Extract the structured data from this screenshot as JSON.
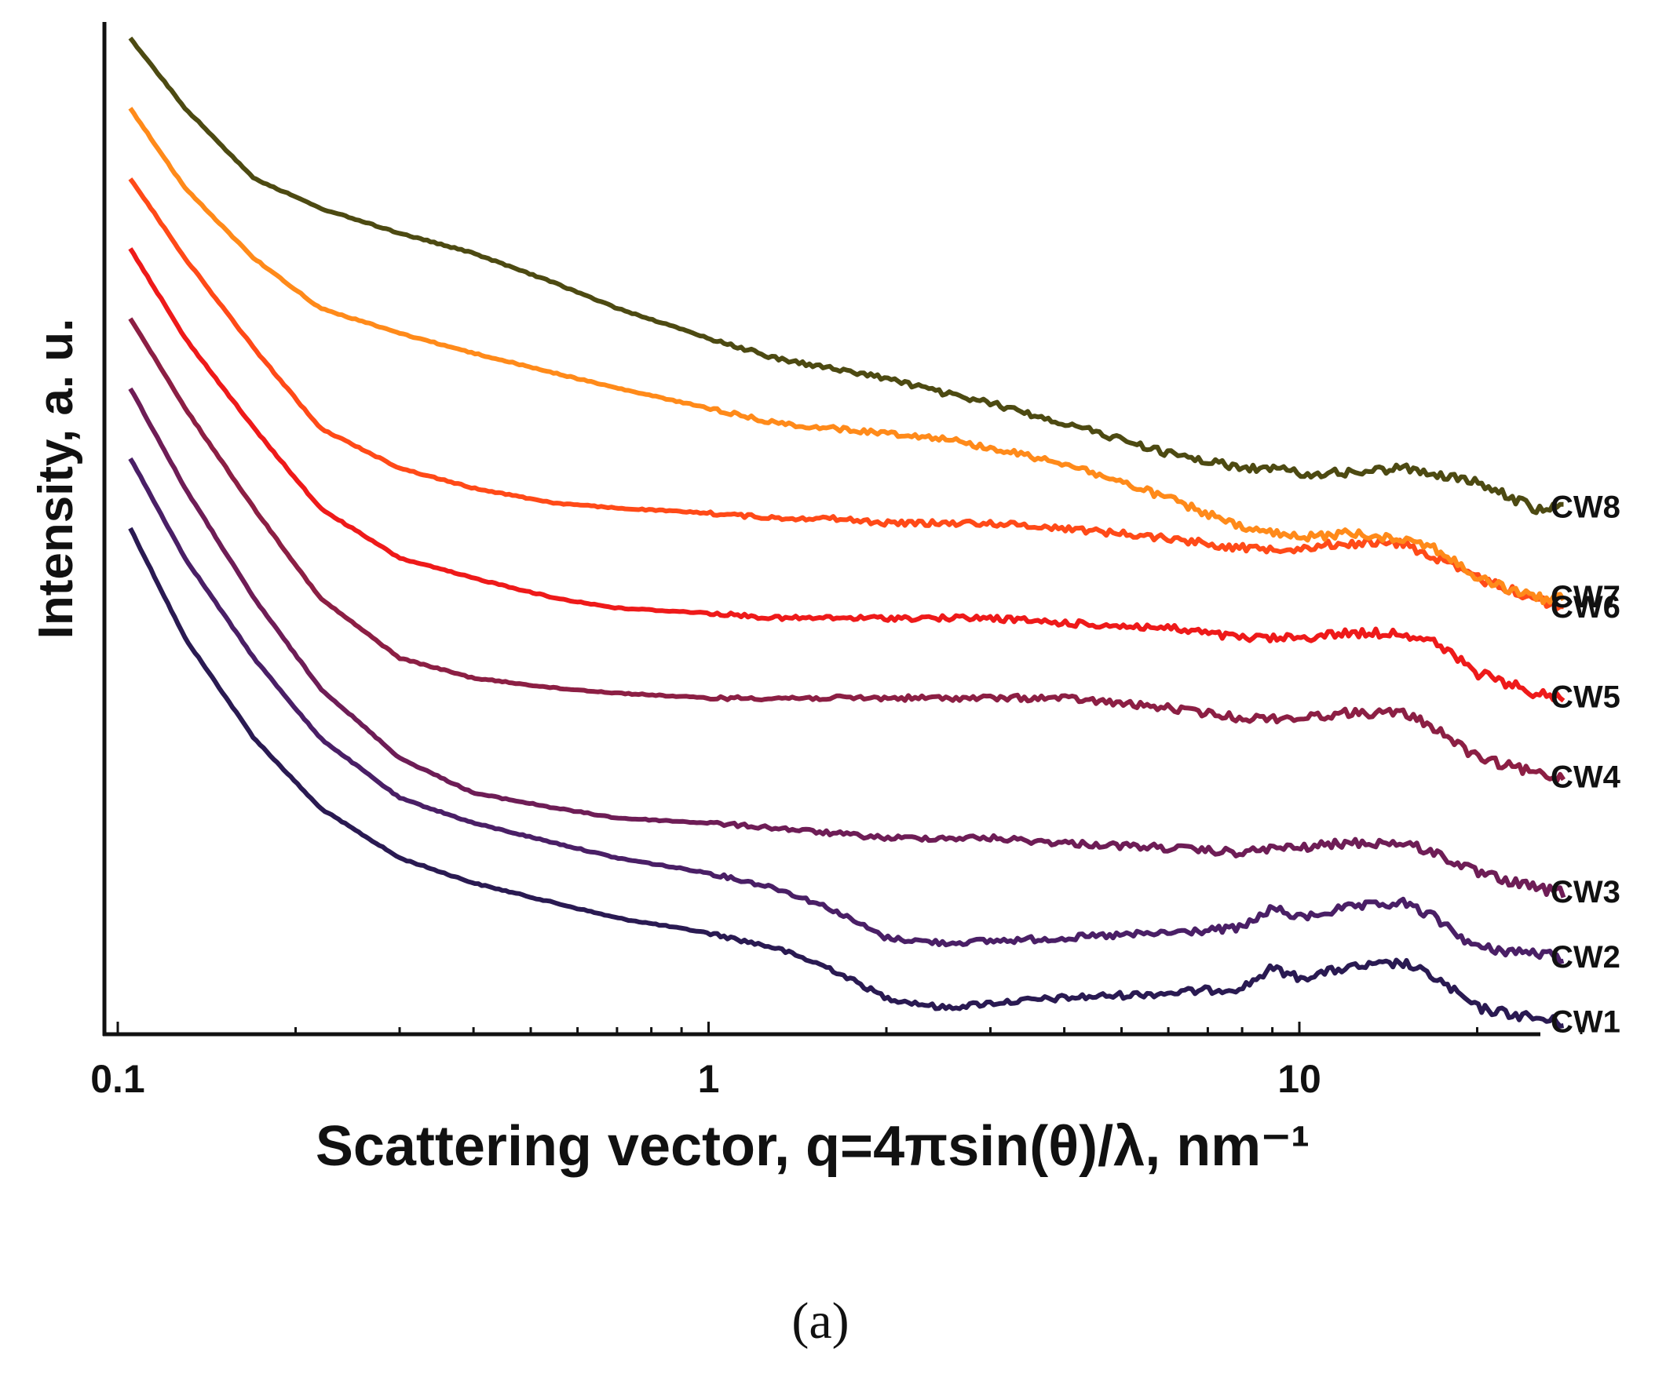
{
  "chart_data": {
    "type": "line",
    "title": "",
    "xlabel": "Scattering vector, q=4πsin(θ)/λ, nm⁻¹",
    "ylabel": "Intensity, a. u.",
    "x_scale": "log",
    "xlim": [
      0.1,
      30
    ],
    "ylim": [
      0,
      1
    ],
    "x_ticks": [
      {
        "value": 0.1,
        "label": "0.1"
      },
      {
        "value": 1,
        "label": "1"
      },
      {
        "value": 10,
        "label": "10"
      }
    ],
    "y_ticks": [],
    "grid": false,
    "panel_label": "(a)",
    "series": [
      {
        "name": "CW1",
        "color": "#2a1a52",
        "x": [
          0.105,
          0.13,
          0.17,
          0.22,
          0.3,
          0.4,
          0.55,
          0.7,
          1.0,
          1.3,
          1.6,
          2.0,
          2.5,
          3.0,
          4.0,
          6.0,
          8.0,
          9.0,
          10.0,
          12.0,
          15.0,
          17.0,
          20.0,
          25.0,
          28.0
        ],
        "values": [
          0.5,
          0.39,
          0.29,
          0.22,
          0.17,
          0.145,
          0.125,
          0.11,
          0.095,
          0.08,
          0.06,
          0.03,
          0.02,
          0.025,
          0.03,
          0.035,
          0.04,
          0.06,
          0.05,
          0.06,
          0.065,
          0.05,
          0.02,
          0.01,
          0.005
        ]
      },
      {
        "name": "CW2",
        "color": "#4a1f66",
        "x": [
          0.105,
          0.13,
          0.17,
          0.22,
          0.3,
          0.4,
          0.55,
          0.7,
          1.0,
          1.3,
          1.6,
          2.0,
          2.5,
          3.0,
          4.0,
          6.0,
          8.0,
          9.0,
          10.0,
          12.0,
          15.0,
          17.0,
          20.0,
          25.0,
          28.0
        ],
        "values": [
          0.57,
          0.47,
          0.37,
          0.29,
          0.23,
          0.205,
          0.185,
          0.17,
          0.155,
          0.14,
          0.12,
          0.09,
          0.085,
          0.087,
          0.09,
          0.095,
          0.1,
          0.12,
          0.11,
          0.12,
          0.125,
          0.11,
          0.08,
          0.075,
          0.07
        ]
      },
      {
        "name": "CW3",
        "color": "#6e1d56",
        "x": [
          0.105,
          0.13,
          0.17,
          0.22,
          0.3,
          0.4,
          0.55,
          0.7,
          1.0,
          1.3,
          1.6,
          2.0,
          2.5,
          3.0,
          4.0,
          6.0,
          8.0,
          9.0,
          10.0,
          12.0,
          15.0,
          17.0,
          20.0,
          25.0,
          28.0
        ],
        "values": [
          0.64,
          0.54,
          0.43,
          0.34,
          0.27,
          0.235,
          0.22,
          0.21,
          0.205,
          0.2,
          0.195,
          0.19,
          0.19,
          0.19,
          0.185,
          0.18,
          0.175,
          0.18,
          0.18,
          0.185,
          0.185,
          0.175,
          0.155,
          0.14,
          0.135
        ]
      },
      {
        "name": "CW4",
        "color": "#8c1f44",
        "x": [
          0.105,
          0.13,
          0.17,
          0.22,
          0.3,
          0.4,
          0.55,
          0.7,
          1.0,
          1.3,
          1.6,
          2.0,
          2.5,
          3.0,
          4.0,
          6.0,
          8.0,
          9.0,
          10.0,
          12.0,
          15.0,
          17.0,
          20.0,
          25.0,
          28.0
        ],
        "values": [
          0.71,
          0.62,
          0.52,
          0.43,
          0.37,
          0.35,
          0.34,
          0.335,
          0.33,
          0.33,
          0.33,
          0.33,
          0.33,
          0.33,
          0.33,
          0.32,
          0.31,
          0.31,
          0.31,
          0.315,
          0.315,
          0.3,
          0.27,
          0.255,
          0.25
        ]
      },
      {
        "name": "CW5",
        "color": "#ee1a1a",
        "x": [
          0.105,
          0.13,
          0.17,
          0.22,
          0.3,
          0.4,
          0.55,
          0.7,
          1.0,
          1.3,
          1.6,
          2.0,
          2.5,
          3.0,
          4.0,
          6.0,
          8.0,
          9.0,
          10.0,
          12.0,
          15.0,
          17.0,
          20.0,
          25.0,
          28.0
        ],
        "values": [
          0.78,
          0.69,
          0.6,
          0.52,
          0.47,
          0.45,
          0.43,
          0.42,
          0.415,
          0.41,
          0.41,
          0.41,
          0.41,
          0.41,
          0.405,
          0.4,
          0.39,
          0.39,
          0.39,
          0.395,
          0.395,
          0.385,
          0.355,
          0.335,
          0.33
        ]
      },
      {
        "name": "CW6",
        "color": "#ff4a18",
        "x": [
          0.105,
          0.13,
          0.17,
          0.22,
          0.3,
          0.4,
          0.55,
          0.7,
          1.0,
          1.3,
          1.6,
          2.0,
          2.5,
          3.0,
          4.0,
          6.0,
          8.0,
          9.0,
          10.0,
          12.0,
          15.0,
          17.0,
          20.0,
          25.0,
          28.0
        ],
        "values": [
          0.85,
          0.77,
          0.68,
          0.6,
          0.56,
          0.54,
          0.525,
          0.52,
          0.515,
          0.51,
          0.51,
          0.505,
          0.505,
          0.505,
          0.5,
          0.49,
          0.48,
          0.48,
          0.48,
          0.485,
          0.485,
          0.47,
          0.45,
          0.43,
          0.42
        ]
      },
      {
        "name": "CW7",
        "color": "#ff8a1a",
        "x": [
          0.105,
          0.13,
          0.17,
          0.22,
          0.3,
          0.4,
          0.55,
          0.7,
          1.0,
          1.3,
          1.6,
          2.0,
          2.5,
          3.0,
          4.0,
          6.0,
          8.0,
          9.0,
          10.0,
          12.0,
          15.0,
          17.0,
          20.0,
          25.0,
          28.0
        ],
        "values": [
          0.92,
          0.84,
          0.77,
          0.72,
          0.695,
          0.675,
          0.655,
          0.64,
          0.62,
          0.605,
          0.6,
          0.595,
          0.59,
          0.58,
          0.565,
          0.53,
          0.5,
          0.495,
          0.49,
          0.495,
          0.49,
          0.48,
          0.45,
          0.43,
          0.43
        ]
      },
      {
        "name": "CW8",
        "color": "#4d4a12",
        "x": [
          0.105,
          0.13,
          0.17,
          0.22,
          0.3,
          0.4,
          0.55,
          0.7,
          1.0,
          1.3,
          1.6,
          2.0,
          2.5,
          3.0,
          4.0,
          6.0,
          8.0,
          9.0,
          10.0,
          12.0,
          15.0,
          17.0,
          20.0,
          25.0,
          28.0
        ],
        "values": [
          0.99,
          0.92,
          0.85,
          0.82,
          0.795,
          0.775,
          0.745,
          0.72,
          0.69,
          0.67,
          0.66,
          0.65,
          0.635,
          0.625,
          0.605,
          0.575,
          0.56,
          0.56,
          0.555,
          0.555,
          0.56,
          0.555,
          0.545,
          0.52,
          0.52
        ]
      }
    ]
  }
}
